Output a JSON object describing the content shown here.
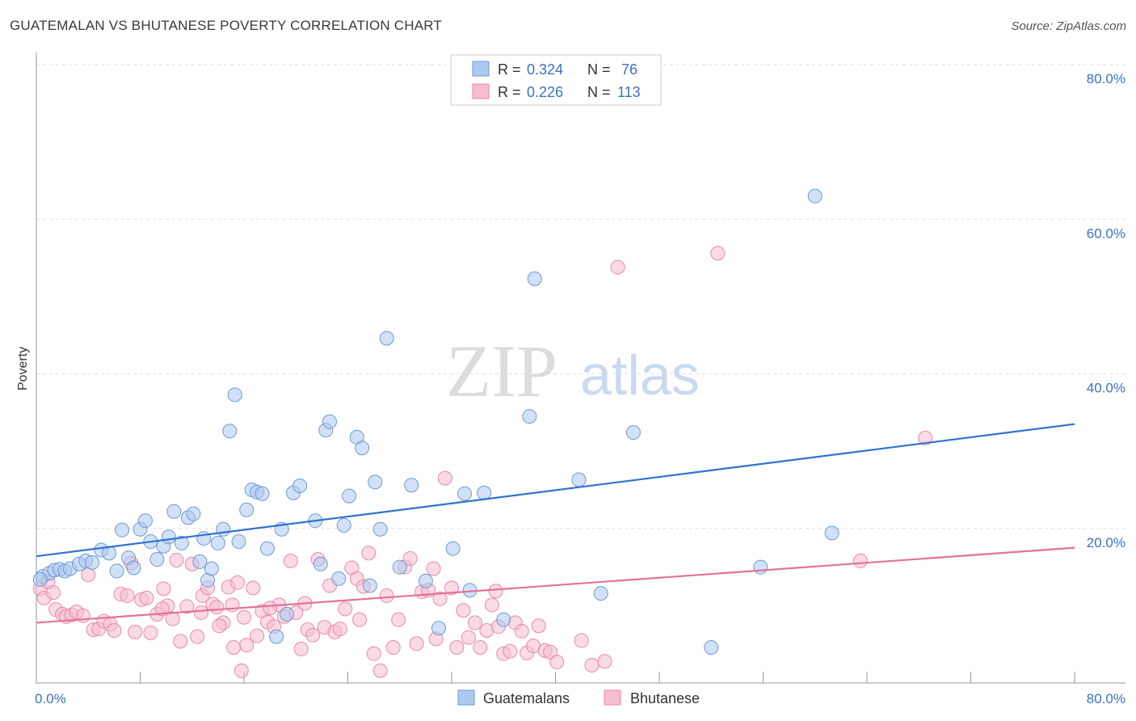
{
  "title": "GUATEMALAN VS BHUTANESE POVERTY CORRELATION CHART",
  "source": "Source: ZipAtlas.com",
  "watermark": {
    "part1": "ZIP",
    "part2": "atlas"
  },
  "colors": {
    "blue_fill": "#adc9ef",
    "blue_stroke": "#6f9ad8",
    "blue_line": "#2f73d0",
    "pink_fill": "#f6bcd0",
    "pink_stroke": "#e88aaa",
    "pink_line": "#e3729a",
    "grid": "#dddddd",
    "axis_label": "#3b72c4"
  },
  "legend": {
    "rows": [
      {
        "r_label": "R = ",
        "r_value": "0.324",
        "n_label": "N = ",
        "n_value": " 76"
      },
      {
        "r_label": "R = ",
        "r_value": "0.226",
        "n_label": "N = ",
        "n_value": "113"
      }
    ]
  },
  "bottom_legend": {
    "series1": "Guatemalans",
    "series2": "Bhutanese"
  },
  "chart_data": {
    "type": "scatter",
    "title": "GUATEMALAN VS BHUTANESE POVERTY CORRELATION CHART",
    "xlabel": "",
    "ylabel": "Poverty",
    "xlim": [
      0,
      80
    ],
    "ylim": [
      0,
      80
    ],
    "x_tick_labels": [
      "0.0%",
      "80.0%"
    ],
    "y_tick_labels": [
      "20.0%",
      "40.0%",
      "60.0%",
      "80.0%"
    ],
    "y_ticks": [
      20,
      40,
      60,
      80
    ],
    "grid": true,
    "legend_position": "top-center",
    "series": [
      {
        "name": "Guatemalans",
        "r": 0.324,
        "n": 76,
        "trend": {
          "x": [
            0,
            80
          ],
          "y": [
            16.4,
            33.5
          ]
        },
        "points": [
          [
            0.5,
            13.8
          ],
          [
            1.0,
            14.2
          ],
          [
            1.4,
            14.6
          ],
          [
            1.8,
            14.7
          ],
          [
            2.2,
            14.5
          ],
          [
            2.6,
            14.8
          ],
          [
            3.3,
            15.4
          ],
          [
            3.8,
            15.8
          ],
          [
            4.3,
            15.6
          ],
          [
            5.0,
            17.2
          ],
          [
            5.6,
            16.8
          ],
          [
            6.2,
            14.5
          ],
          [
            6.6,
            19.8
          ],
          [
            7.1,
            16.2
          ],
          [
            7.5,
            14.9
          ],
          [
            8.0,
            19.9
          ],
          [
            8.4,
            21.0
          ],
          [
            8.8,
            18.3
          ],
          [
            9.3,
            16.0
          ],
          [
            9.8,
            17.7
          ],
          [
            10.2,
            18.9
          ],
          [
            10.6,
            22.2
          ],
          [
            11.2,
            18.1
          ],
          [
            11.7,
            21.4
          ],
          [
            12.1,
            21.9
          ],
          [
            12.6,
            15.7
          ],
          [
            12.9,
            18.7
          ],
          [
            13.2,
            13.3
          ],
          [
            13.5,
            14.8
          ],
          [
            14.0,
            18.1
          ],
          [
            14.4,
            19.9
          ],
          [
            14.9,
            32.6
          ],
          [
            15.3,
            37.3
          ],
          [
            15.6,
            18.3
          ],
          [
            16.2,
            22.4
          ],
          [
            16.6,
            25.0
          ],
          [
            17.0,
            24.7
          ],
          [
            17.4,
            24.5
          ],
          [
            17.8,
            17.4
          ],
          [
            18.5,
            6.0
          ],
          [
            18.9,
            19.9
          ],
          [
            19.3,
            8.9
          ],
          [
            19.8,
            24.6
          ],
          [
            20.3,
            25.5
          ],
          [
            21.5,
            21.0
          ],
          [
            21.9,
            15.4
          ],
          [
            22.3,
            32.7
          ],
          [
            22.6,
            33.8
          ],
          [
            23.3,
            13.5
          ],
          [
            23.7,
            20.4
          ],
          [
            24.1,
            24.2
          ],
          [
            24.7,
            31.8
          ],
          [
            25.1,
            30.4
          ],
          [
            25.7,
            12.6
          ],
          [
            26.1,
            26.0
          ],
          [
            26.5,
            19.9
          ],
          [
            27.0,
            44.6
          ],
          [
            28.0,
            15.0
          ],
          [
            28.9,
            25.6
          ],
          [
            30.0,
            13.2
          ],
          [
            31.0,
            7.1
          ],
          [
            32.1,
            17.4
          ],
          [
            33.0,
            24.5
          ],
          [
            33.4,
            12.0
          ],
          [
            34.5,
            24.6
          ],
          [
            36.0,
            8.2
          ],
          [
            38.0,
            34.5
          ],
          [
            38.4,
            52.3
          ],
          [
            41.8,
            26.3
          ],
          [
            43.5,
            11.6
          ],
          [
            46.0,
            32.4
          ],
          [
            52.0,
            4.6
          ],
          [
            55.8,
            15.0
          ],
          [
            60.0,
            63.0
          ],
          [
            61.3,
            19.4
          ],
          [
            0.3,
            13.4
          ]
        ]
      },
      {
        "name": "Bhutanese",
        "r": 0.226,
        "n": 113,
        "trend": {
          "x": [
            0,
            80
          ],
          "y": [
            7.8,
            17.5
          ]
        },
        "points": [
          [
            0.3,
            12.2
          ],
          [
            0.6,
            11.0
          ],
          [
            0.9,
            13.1
          ],
          [
            1.3,
            11.7
          ],
          [
            1.5,
            9.5
          ],
          [
            2.0,
            8.9
          ],
          [
            2.3,
            8.6
          ],
          [
            2.7,
            8.8
          ],
          [
            3.1,
            9.2
          ],
          [
            3.6,
            8.7
          ],
          [
            4.0,
            14.0
          ],
          [
            4.4,
            6.9
          ],
          [
            4.8,
            7.0
          ],
          [
            5.2,
            8.0
          ],
          [
            5.7,
            7.6
          ],
          [
            6.0,
            6.8
          ],
          [
            6.5,
            11.5
          ],
          [
            7.0,
            11.3
          ],
          [
            7.3,
            15.5
          ],
          [
            7.6,
            6.6
          ],
          [
            8.1,
            10.8
          ],
          [
            8.5,
            11.0
          ],
          [
            8.8,
            6.5
          ],
          [
            9.3,
            8.9
          ],
          [
            9.8,
            12.2
          ],
          [
            10.1,
            10.0
          ],
          [
            10.5,
            8.3
          ],
          [
            10.8,
            15.9
          ],
          [
            11.1,
            5.4
          ],
          [
            11.6,
            9.9
          ],
          [
            12.0,
            15.4
          ],
          [
            12.4,
            6.0
          ],
          [
            12.8,
            11.3
          ],
          [
            13.2,
            12.3
          ],
          [
            13.6,
            10.2
          ],
          [
            13.9,
            9.8
          ],
          [
            14.4,
            7.8
          ],
          [
            14.8,
            12.4
          ],
          [
            15.1,
            10.1
          ],
          [
            15.5,
            13.0
          ],
          [
            15.8,
            1.6
          ],
          [
            16.2,
            4.9
          ],
          [
            16.7,
            12.3
          ],
          [
            17.0,
            6.1
          ],
          [
            17.4,
            9.3
          ],
          [
            17.8,
            7.9
          ],
          [
            18.3,
            7.3
          ],
          [
            18.7,
            10.1
          ],
          [
            19.1,
            8.6
          ],
          [
            19.6,
            15.8
          ],
          [
            20.0,
            9.1
          ],
          [
            20.4,
            4.4
          ],
          [
            20.9,
            6.9
          ],
          [
            21.3,
            6.2
          ],
          [
            21.7,
            16.0
          ],
          [
            22.2,
            7.2
          ],
          [
            22.6,
            12.6
          ],
          [
            23.0,
            6.6
          ],
          [
            23.4,
            7.0
          ],
          [
            23.8,
            9.6
          ],
          [
            24.3,
            14.9
          ],
          [
            24.7,
            13.5
          ],
          [
            25.2,
            12.5
          ],
          [
            25.6,
            16.8
          ],
          [
            26.0,
            3.8
          ],
          [
            26.5,
            1.6
          ],
          [
            27.0,
            11.3
          ],
          [
            27.5,
            4.6
          ],
          [
            27.9,
            8.2
          ],
          [
            28.4,
            15.0
          ],
          [
            28.8,
            16.1
          ],
          [
            29.3,
            5.1
          ],
          [
            29.7,
            11.8
          ],
          [
            30.2,
            12.0
          ],
          [
            30.6,
            14.8
          ],
          [
            31.1,
            10.9
          ],
          [
            31.5,
            26.5
          ],
          [
            32.0,
            12.3
          ],
          [
            32.4,
            4.6
          ],
          [
            32.9,
            9.4
          ],
          [
            33.3,
            5.9
          ],
          [
            33.8,
            7.8
          ],
          [
            34.2,
            4.6
          ],
          [
            34.7,
            6.8
          ],
          [
            35.1,
            10.1
          ],
          [
            35.6,
            7.3
          ],
          [
            36.0,
            3.8
          ],
          [
            36.5,
            4.1
          ],
          [
            36.9,
            7.8
          ],
          [
            37.4,
            6.7
          ],
          [
            37.8,
            3.9
          ],
          [
            38.3,
            4.8
          ],
          [
            38.7,
            7.4
          ],
          [
            39.2,
            4.2
          ],
          [
            39.6,
            4.0
          ],
          [
            40.1,
            2.7
          ],
          [
            42.0,
            5.5
          ],
          [
            42.8,
            2.3
          ],
          [
            43.8,
            2.8
          ],
          [
            44.8,
            53.8
          ],
          [
            52.5,
            55.6
          ],
          [
            63.5,
            15.8
          ],
          [
            68.5,
            31.7
          ],
          [
            15.2,
            4.6
          ],
          [
            18.0,
            9.7
          ],
          [
            12.7,
            9.1
          ],
          [
            16.0,
            8.5
          ],
          [
            14.1,
            7.4
          ],
          [
            20.7,
            10.3
          ],
          [
            24.9,
            8.2
          ],
          [
            30.8,
            5.7
          ],
          [
            35.4,
            11.9
          ],
          [
            9.7,
            9.6
          ]
        ]
      }
    ]
  }
}
